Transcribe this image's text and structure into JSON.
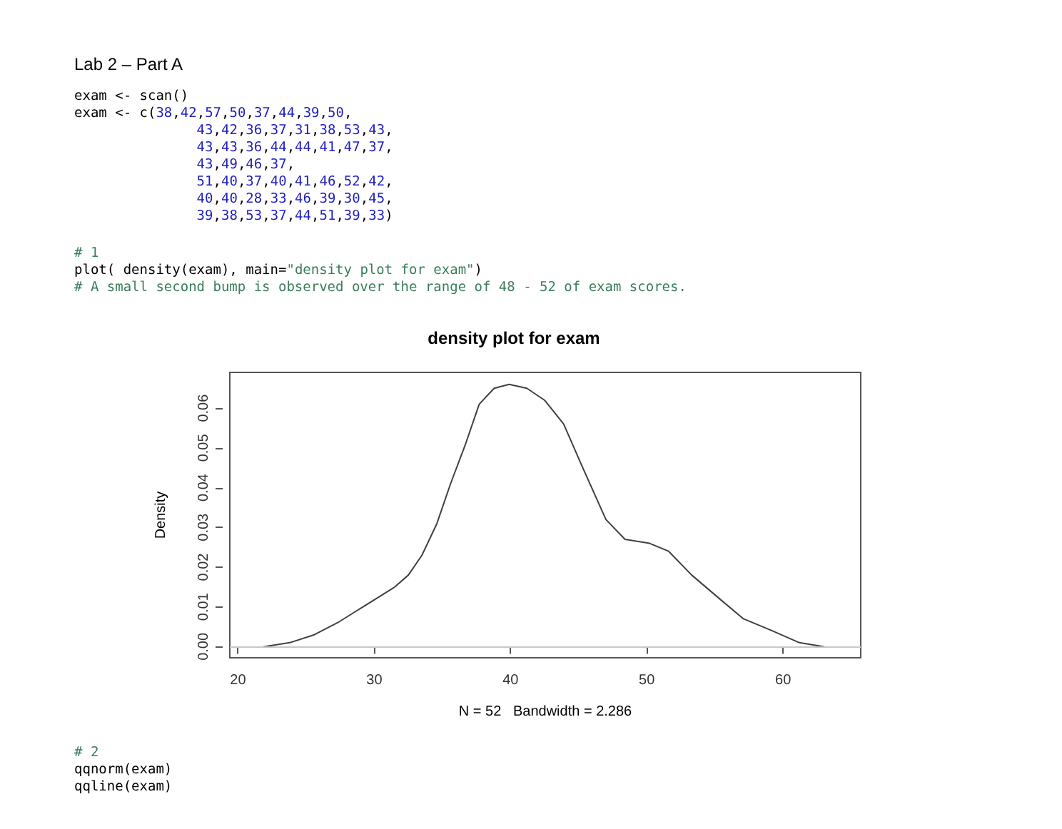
{
  "chart_data": {
    "type": "line",
    "title": "density plot for exam",
    "xlabel": "N = 52   Bandwidth = 2.286",
    "ylabel": "Density",
    "annotations": [
      "Lab 2 – Part A",
      "exam <- scan()",
      "exam <- c(38,42,57,50,37,44,39,50,",
      "43,42,36,37,31,38,53,43,",
      "43,43,36,44,44,41,47,37,",
      "43,49,46,37,",
      "51,40,37,40,41,46,52,42,",
      "40,40,28,33,46,39,30,45,",
      "39,38,53,37,44,51,39,33)",
      "# 1",
      "plot( density(exam), main=\"density plot for exam\")",
      "# A small second bump is observed over the range of 48 - 52 of exam scores.",
      "# 2",
      "qqnorm(exam)",
      "qqline(exam)"
    ],
    "series": [
      {
        "color": "#404040",
        "x": [
          21.9,
          23.8,
          25.6,
          27.3,
          28.7,
          30.1,
          31.5,
          32.5,
          33.5,
          34.6,
          35.6,
          36.7,
          37.7,
          38.8,
          39.9,
          41.2,
          42.5,
          43.9,
          45.3,
          47.0,
          48.4,
          50.2,
          51.6,
          53.3,
          55.7,
          57.1,
          59.2,
          61.2,
          63.0
        ],
        "values": [
          0.0,
          0.001,
          0.003,
          0.006,
          0.009,
          0.012,
          0.015,
          0.018,
          0.023,
          0.031,
          0.041,
          0.051,
          0.061,
          0.065,
          0.066,
          0.065,
          0.062,
          0.056,
          0.045,
          0.032,
          0.027,
          0.026,
          0.024,
          0.018,
          0.011,
          0.007,
          0.004,
          0.001,
          0.0
        ]
      }
    ],
    "xlim": [
      19.4,
      65.7
    ],
    "xticks": [
      20,
      30,
      40,
      50,
      60
    ],
    "ylim": [
      -0.0028,
      0.069
    ],
    "yticks": [
      {
        "value": 0,
        "label": "0.00"
      },
      {
        "value": 0.01,
        "label": "0.01"
      },
      {
        "value": 0.02,
        "label": "0.02"
      },
      {
        "value": 0.03,
        "label": "0.03"
      },
      {
        "value": 0.04,
        "label": "0.04"
      },
      {
        "value": 0.05,
        "label": "0.05"
      },
      {
        "value": 0.06,
        "label": "0.06"
      }
    ],
    "ref_lines": [
      {
        "axis": "y",
        "value": 0,
        "color": "#c8c8c8"
      }
    ],
    "grid": false,
    "marker": "none",
    "line_style": "solid"
  }
}
